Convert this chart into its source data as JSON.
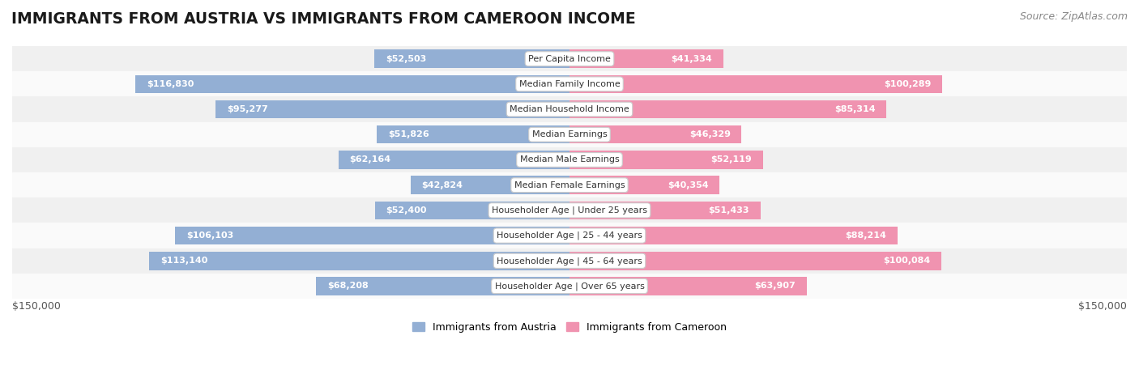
{
  "title": "IMMIGRANTS FROM AUSTRIA VS IMMIGRANTS FROM CAMEROON INCOME",
  "source": "Source: ZipAtlas.com",
  "categories": [
    "Per Capita Income",
    "Median Family Income",
    "Median Household Income",
    "Median Earnings",
    "Median Male Earnings",
    "Median Female Earnings",
    "Householder Age | Under 25 years",
    "Householder Age | 25 - 44 years",
    "Householder Age | 45 - 64 years",
    "Householder Age | Over 65 years"
  ],
  "austria_values": [
    52503,
    116830,
    95277,
    51826,
    62164,
    42824,
    52400,
    106103,
    113140,
    68208
  ],
  "cameroon_values": [
    41334,
    100289,
    85314,
    46329,
    52119,
    40354,
    51433,
    88214,
    100084,
    63907
  ],
  "austria_color": "#93afd4",
  "cameroon_color": "#f093b0",
  "austria_label": "Immigrants from Austria",
  "cameroon_label": "Immigrants from Cameroon",
  "max_value": 150000,
  "x_label_left": "$150,000",
  "x_label_right": "$150,000",
  "background_color": "#ffffff",
  "row_bg_even": "#f0f0f0",
  "row_bg_odd": "#fafafa",
  "bar_height": 0.72,
  "title_fontsize": 13.5,
  "source_fontsize": 9,
  "category_fontsize": 8,
  "value_fontsize": 8,
  "axis_fontsize": 9,
  "inside_threshold": 35000
}
